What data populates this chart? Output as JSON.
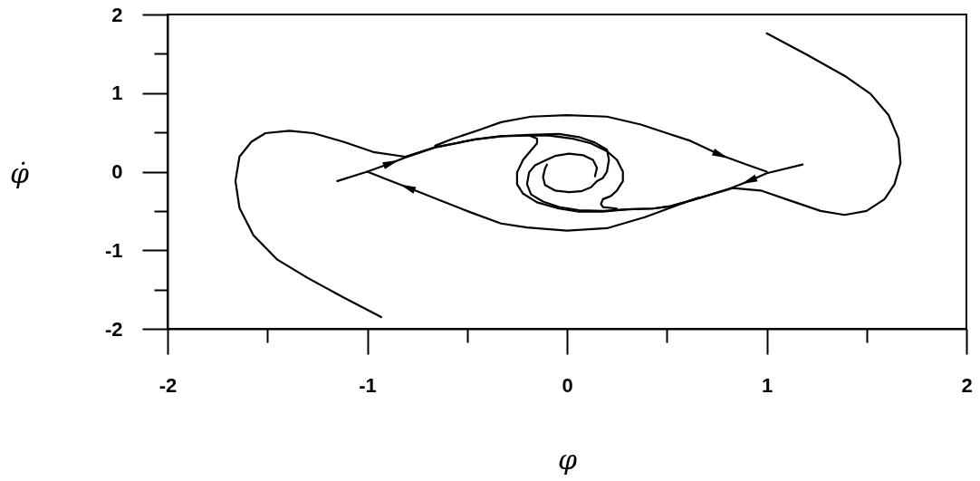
{
  "chart_data": {
    "type": "line",
    "xlabel": "φ",
    "ylabel": "φ̇",
    "xlim": [
      -2,
      2
    ],
    "ylim": [
      -2,
      2
    ],
    "xticks": [
      -2,
      {
        "value": -1.5,
        "label": null
      },
      -1,
      {
        "value": -0.5,
        "label": null
      },
      0,
      {
        "value": 0.5,
        "label": null
      },
      1,
      {
        "value": 1.5,
        "label": null
      },
      2
    ],
    "yticks": [
      -2,
      {
        "value": -1.5,
        "label": null
      },
      -1,
      {
        "value": -0.5,
        "label": null
      },
      0,
      {
        "value": 0.5,
        "label": null
      },
      1,
      {
        "value": 1.5,
        "label": null
      },
      2
    ],
    "line_style": "solid",
    "series": [
      {
        "color": "#000000",
        "x": [
          -0.66,
          -0.57,
          -0.44,
          -0.33,
          -0.18,
          0,
          0.2,
          0.37,
          0.5,
          0.62,
          0.77,
          0.9,
          1
        ],
        "values": [
          0.33,
          0.42,
          0.53,
          0.63,
          0.7,
          0.72,
          0.7,
          0.6,
          0.49,
          0.39,
          0.21,
          0.09,
          0
        ]
      },
      {
        "color": "#000000",
        "x": [
          0.66,
          0.55,
          0.39,
          0.2,
          0,
          -0.2,
          -0.33,
          -0.48,
          -0.62,
          -0.8,
          -0.9,
          -1
        ],
        "values": [
          -0.33,
          -0.43,
          -0.58,
          -0.72,
          -0.75,
          -0.71,
          -0.66,
          -0.52,
          -0.38,
          -0.2,
          -0.1,
          0
        ]
      },
      {
        "color": "#000000",
        "x": [
          -0.93,
          -1.12,
          -1.3,
          -1.45,
          -1.57,
          -1.64,
          -1.66,
          -1.64,
          -1.58,
          -1.51,
          -1.39,
          -1.27,
          -1.12,
          -0.97,
          -0.81,
          -0.66,
          -0.46,
          -0.33,
          -0.19,
          -0.09,
          0.03,
          0.12,
          0.2,
          0.25,
          0.28,
          0.28,
          0.25,
          0.22,
          0.18,
          0.17,
          0.18,
          0.25
        ],
        "values": [
          -1.85,
          -1.6,
          -1.35,
          -1.12,
          -0.81,
          -0.46,
          -0.12,
          0.19,
          0.38,
          0.49,
          0.52,
          0.49,
          0.38,
          0.25,
          0.19,
          0.31,
          0.41,
          0.45,
          0.46,
          0.46,
          0.42,
          0.36,
          0.26,
          0.15,
          0,
          -0.12,
          -0.24,
          -0.31,
          -0.35,
          -0.41,
          -0.45,
          -0.47
        ]
      },
      {
        "color": "#000000",
        "x": [
          1,
          1.2,
          1.39,
          1.52,
          1.61,
          1.66,
          1.67,
          1.64,
          1.59,
          1.5,
          1.39,
          1.27,
          1.12,
          0.97,
          0.83,
          0.67,
          0.52,
          0.43,
          0.3,
          0.18,
          0.06,
          -0.04,
          -0.15,
          -0.22,
          -0.25,
          -0.25,
          -0.22,
          -0.18,
          -0.15,
          -0.15,
          -0.19
        ],
        "values": [
          1.76,
          1.49,
          1.22,
          0.99,
          0.72,
          0.42,
          0.11,
          -0.16,
          -0.35,
          -0.5,
          -0.55,
          -0.5,
          -0.37,
          -0.24,
          -0.21,
          -0.33,
          -0.44,
          -0.47,
          -0.48,
          -0.51,
          -0.51,
          -0.47,
          -0.39,
          -0.28,
          -0.16,
          -0.01,
          0.15,
          0.27,
          0.36,
          0.42,
          0.46
        ]
      },
      {
        "color": "#000000",
        "x": [
          -1.15,
          -1,
          -0.88,
          -0.81,
          -0.66,
          -0.46,
          -0.33,
          -0.19,
          -0.04,
          0.06,
          0.14,
          0.2,
          0.21,
          0.2,
          0.18,
          0.15,
          0.12,
          0.07,
          0.01,
          -0.06,
          -0.11,
          -0.12,
          -0.11,
          -0.1
        ],
        "values": [
          -0.12,
          0,
          0.11,
          0.18,
          0.31,
          0.41,
          0.45,
          0.47,
          0.48,
          0.44,
          0.37,
          0.28,
          0.15,
          0,
          -0.08,
          -0.12,
          -0.2,
          -0.25,
          -0.26,
          -0.24,
          -0.17,
          -0.07,
          0.04,
          0.09
        ]
      },
      {
        "color": "#000000",
        "x": [
          1.18,
          1,
          0.91,
          0.82,
          0.67,
          0.52,
          0.43,
          0.3,
          0.18,
          0.06,
          -0.04,
          -0.12,
          -0.18,
          -0.2,
          -0.19,
          -0.16,
          -0.12,
          -0.06,
          0.01,
          0.08,
          0.13,
          0.15,
          0.14
        ],
        "values": [
          0.09,
          -0.02,
          -0.12,
          -0.21,
          -0.33,
          -0.44,
          -0.47,
          -0.48,
          -0.5,
          -0.49,
          -0.45,
          -0.38,
          -0.29,
          -0.16,
          -0.01,
          0.08,
          0.13,
          0.2,
          0.23,
          0.21,
          0.15,
          0.05,
          -0.06
        ]
      }
    ]
  }
}
